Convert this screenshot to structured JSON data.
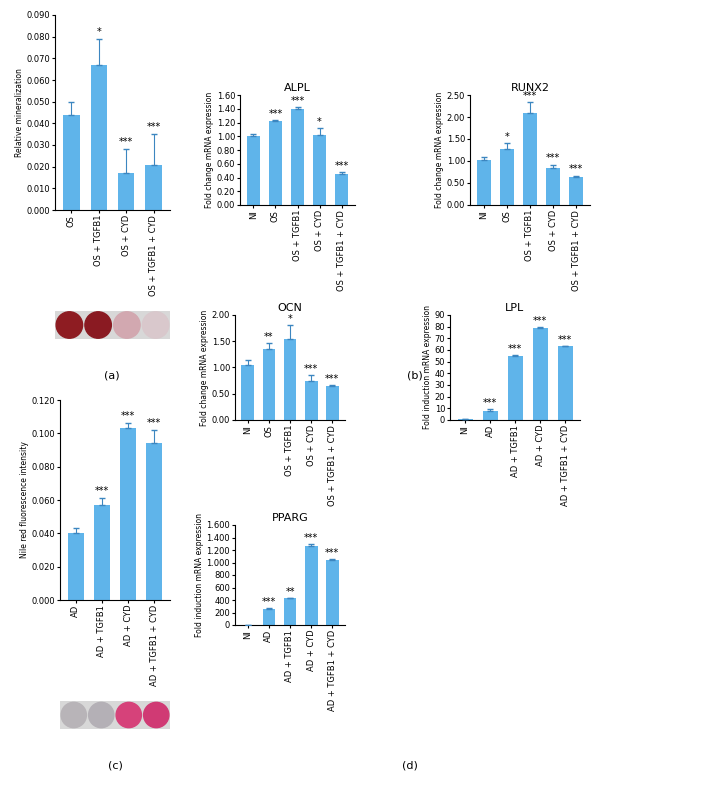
{
  "panel_labels": [
    "(a)",
    "(b)",
    "(c)",
    "(d)"
  ],
  "chart_data": [
    {
      "type": "bar",
      "y_label": "Relative mineralization",
      "categories": [
        "OS",
        "OS + TGFB1",
        "OS + CYD",
        "OS + TGFB1 + CYD"
      ],
      "values": [
        0.044,
        0.067,
        0.017,
        0.021
      ],
      "errors": [
        0.006,
        0.012,
        0.011,
        0.014
      ],
      "annotations": [
        null,
        "*",
        "***",
        "***"
      ],
      "color": "#5fb4ea",
      "ylim": [
        0,
        0.09
      ],
      "yticks": [
        {
          "value": 0,
          "label": "0.000"
        },
        {
          "value": 0.01,
          "label": "0.010"
        },
        {
          "value": 0.02,
          "label": "0.020"
        },
        {
          "value": 0.03,
          "label": "0.030"
        },
        {
          "value": 0.04,
          "label": "0.040"
        },
        {
          "value": 0.05,
          "label": "0.050"
        },
        {
          "value": 0.06,
          "label": "0.060"
        },
        {
          "value": 0.07,
          "label": "0.070"
        },
        {
          "value": 0.08,
          "label": "0.080"
        },
        {
          "value": 0.09,
          "label": "0.090"
        }
      ]
    },
    {
      "type": "bar",
      "title": "ALPL",
      "y_label": "Fold change mRNA expression",
      "categories": [
        "NI",
        "OS",
        "OS + TGFB1",
        "OS + CYD",
        "OS + TGFB1 + CYD"
      ],
      "values": [
        1.0,
        1.22,
        1.4,
        1.02,
        0.45
      ],
      "errors": [
        0.03,
        0.02,
        0.02,
        0.1,
        0.03
      ],
      "annotations": [
        null,
        "***",
        "***",
        "*",
        "***"
      ],
      "color": "#5fb4ea",
      "ylim": [
        0,
        1.6
      ],
      "yticks": [
        {
          "value": 0,
          "label": "0.00"
        },
        {
          "value": 0.2,
          "label": "0.20"
        },
        {
          "value": 0.4,
          "label": "0.40"
        },
        {
          "value": 0.6,
          "label": "0.60"
        },
        {
          "value": 0.8,
          "label": "0.80"
        },
        {
          "value": 1.0,
          "label": "1.00"
        },
        {
          "value": 1.2,
          "label": "1.20"
        },
        {
          "value": 1.4,
          "label": "1.40"
        },
        {
          "value": 1.6,
          "label": "1.60"
        }
      ]
    },
    {
      "type": "bar",
      "title": "RUNX2",
      "y_label": "Fold change mRNA expression",
      "categories": [
        "NI",
        "OS",
        "OS + TGFB1",
        "OS + CYD",
        "OS + TGFB1 + CYD"
      ],
      "values": [
        1.02,
        1.28,
        2.08,
        0.84,
        0.63
      ],
      "errors": [
        0.08,
        0.12,
        0.25,
        0.08,
        0.04
      ],
      "annotations": [
        null,
        "*",
        "***",
        "***",
        "***"
      ],
      "color": "#5fb4ea",
      "ylim": [
        0,
        2.5
      ],
      "yticks": [
        {
          "value": 0,
          "label": "0.00"
        },
        {
          "value": 0.5,
          "label": "0.50"
        },
        {
          "value": 1.0,
          "label": "1.00"
        },
        {
          "value": 1.5,
          "label": "1.50"
        },
        {
          "value": 2.0,
          "label": "2.00"
        },
        {
          "value": 2.5,
          "label": "2.50"
        }
      ]
    },
    {
      "type": "bar",
      "y_label": "Nile red fluorescence intensity",
      "categories": [
        "AD",
        "AD + TGFB1",
        "AD + CYD",
        "AD + TGFB1 + CYD"
      ],
      "values": [
        0.04,
        0.057,
        0.103,
        0.094
      ],
      "errors": [
        0.003,
        0.004,
        0.003,
        0.008
      ],
      "annotations": [
        null,
        "***",
        "***",
        "***"
      ],
      "color": "#5fb4ea",
      "ylim": [
        0,
        0.12
      ],
      "yticks": [
        {
          "value": 0,
          "label": "0.000"
        },
        {
          "value": 0.02,
          "label": "0.020"
        },
        {
          "value": 0.04,
          "label": "0.040"
        },
        {
          "value": 0.06,
          "label": "0.060"
        },
        {
          "value": 0.08,
          "label": "0.080"
        },
        {
          "value": 0.1,
          "label": "0.100"
        },
        {
          "value": 0.12,
          "label": "0.120"
        }
      ]
    },
    {
      "type": "bar",
      "title": "OCN",
      "y_label": "Fold change mRNA expression",
      "categories": [
        "NI",
        "OS",
        "OS + TGFB1",
        "OS + CYD",
        "OS + TGFB1 + CYD"
      ],
      "values": [
        1.05,
        1.35,
        1.55,
        0.75,
        0.65
      ],
      "errors": [
        0.1,
        0.12,
        0.25,
        0.1,
        0.02
      ],
      "annotations": [
        null,
        "**",
        "*",
        "***",
        "***"
      ],
      "color": "#5fb4ea",
      "ylim": [
        0,
        2.0
      ],
      "yticks": [
        {
          "value": 0,
          "label": "0.00"
        },
        {
          "value": 0.5,
          "label": "0.50"
        },
        {
          "value": 1.0,
          "label": "1.00"
        },
        {
          "value": 1.5,
          "label": "1.50"
        },
        {
          "value": 2.0,
          "label": "2.00"
        }
      ]
    },
    {
      "type": "bar",
      "title": "LPL",
      "y_label": "Fold induction mRNA expression",
      "categories": [
        "NI",
        "AD",
        "AD + TGFB1",
        "AD + CYD",
        "AD + TGFB1 + CYD"
      ],
      "values": [
        1,
        8,
        55,
        79,
        63
      ],
      "errors": [
        0.2,
        1,
        0.5,
        0.5,
        0.5
      ],
      "annotations": [
        null,
        "***",
        "***",
        "***",
        "***"
      ],
      "color": "#5fb4ea",
      "ylim": [
        0,
        90
      ],
      "yticks": [
        0,
        10,
        20,
        30,
        40,
        50,
        60,
        70,
        80,
        90
      ]
    },
    {
      "type": "bar",
      "title": "PPARG",
      "y_label": "Fold induction mRNA expression",
      "categories": [
        "NI",
        "AD",
        "AD + TGFB1",
        "AD + CYD",
        "AD + TGFB1 + CYD"
      ],
      "values": [
        1,
        250,
        430,
        1270,
        1040
      ],
      "errors": [
        1,
        30,
        10,
        20,
        20
      ],
      "annotations": [
        null,
        "***",
        "**",
        "***",
        "***"
      ],
      "color": "#5fb4ea",
      "ylim": [
        0,
        1600
      ],
      "yticks": [
        0,
        200,
        400,
        600,
        800,
        {
          "value": 1000,
          "label": "1.000"
        },
        {
          "value": 1200,
          "label": "1.200"
        },
        {
          "value": 1400,
          "label": "1.400"
        },
        {
          "value": 1600,
          "label": "1.600"
        }
      ]
    }
  ]
}
